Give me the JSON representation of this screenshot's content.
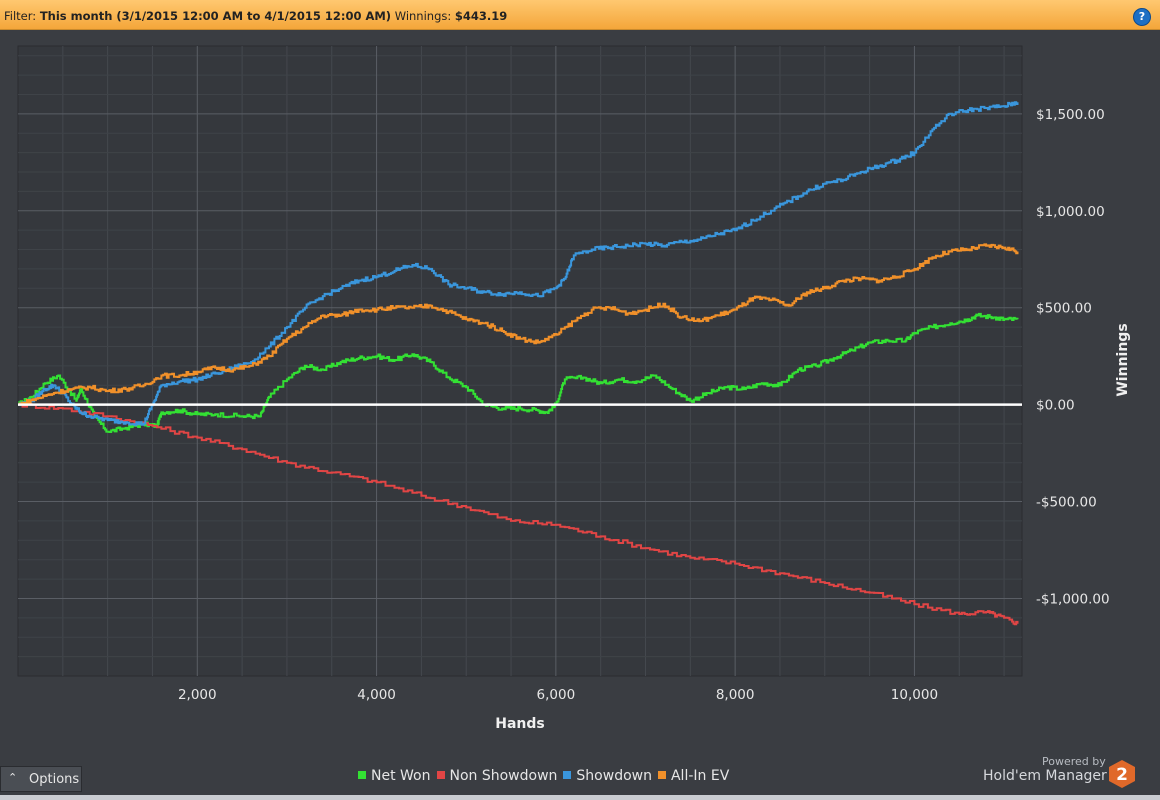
{
  "filter": {
    "label": "Filter:",
    "value": "This month (3/1/2015 12:00 AM to 4/1/2015 12:00 AM)",
    "winnings_label": "Winnings:",
    "winnings_value": "$443.19"
  },
  "help_icon": "question-icon",
  "chart_data": {
    "type": "line",
    "xlabel": "Hands",
    "ylabel": "Winnings",
    "xlim": [
      0,
      11200
    ],
    "ylim": [
      -1400,
      1850
    ],
    "x_ticks": [
      2000,
      4000,
      6000,
      8000,
      10000
    ],
    "x_tick_labels": [
      "2,000",
      "4,000",
      "6,000",
      "8,000",
      "10,000"
    ],
    "y_ticks": [
      1500,
      1000,
      500,
      0,
      -500,
      -1000
    ],
    "y_tick_labels": [
      "$1,500.00",
      "$1,000.00",
      "$500.00",
      "$0.00",
      "-$500.00",
      "-$1,000.00"
    ],
    "grid": true,
    "legend_position": "bottom",
    "series": [
      {
        "name": "Net Won",
        "color": "#33e033",
        "x": [
          0,
          150,
          300,
          450,
          650,
          700,
          850,
          1000,
          1200,
          1400,
          1550,
          1600,
          1800,
          2000,
          2200,
          2500,
          2700,
          2800,
          3000,
          3200,
          3400,
          3600,
          3800,
          4000,
          4200,
          4400,
          4600,
          4800,
          5000,
          5200,
          5400,
          5600,
          5800,
          5900,
          6000,
          6100,
          6300,
          6500,
          6700,
          6900,
          7100,
          7300,
          7500,
          7700,
          7900,
          8100,
          8300,
          8500,
          8700,
          8900,
          9100,
          9300,
          9500,
          9700,
          9900,
          10000,
          10200,
          10400,
          10600,
          10700,
          10900,
          11000,
          11150
        ],
        "y": [
          0,
          40,
          110,
          150,
          20,
          80,
          -60,
          -140,
          -120,
          -100,
          -110,
          -40,
          -30,
          -50,
          -50,
          -60,
          -60,
          40,
          130,
          200,
          180,
          220,
          240,
          250,
          230,
          260,
          220,
          140,
          90,
          0,
          -20,
          -20,
          -30,
          -40,
          0,
          130,
          140,
          110,
          130,
          120,
          150,
          80,
          20,
          60,
          90,
          80,
          110,
          100,
          180,
          200,
          240,
          280,
          320,
          330,
          330,
          370,
          400,
          420,
          440,
          460,
          450,
          440,
          440
        ]
      },
      {
        "name": "Non Showdown",
        "color": "#e14545",
        "x": [
          0,
          500,
          1000,
          1500,
          2000,
          2500,
          3000,
          3500,
          4000,
          4500,
          5000,
          5500,
          6000,
          6500,
          7000,
          7500,
          8000,
          8500,
          9000,
          9500,
          10000,
          10500,
          10800,
          11000,
          11150
        ],
        "y": [
          0,
          -20,
          -60,
          -110,
          -170,
          -230,
          -300,
          -350,
          -400,
          -470,
          -530,
          -600,
          -620,
          -680,
          -740,
          -790,
          -820,
          -870,
          -920,
          -970,
          -1030,
          -1080,
          -1070,
          -1100,
          -1130
        ]
      },
      {
        "name": "Showdown",
        "color": "#3a96dc",
        "x": [
          0,
          150,
          300,
          400,
          500,
          600,
          700,
          800,
          1000,
          1200,
          1400,
          1500,
          1600,
          1800,
          2000,
          2200,
          2400,
          2600,
          2800,
          3000,
          3200,
          3400,
          3600,
          3800,
          4000,
          4200,
          4400,
          4600,
          4800,
          5000,
          5200,
          5400,
          5600,
          5800,
          6000,
          6100,
          6200,
          6400,
          6600,
          6800,
          7000,
          7200,
          7400,
          7600,
          7800,
          8000,
          8200,
          8400,
          8600,
          8800,
          9000,
          9200,
          9400,
          9600,
          9800,
          10000,
          10200,
          10400,
          10600,
          10800,
          11000,
          11150
        ],
        "y": [
          0,
          20,
          80,
          100,
          60,
          0,
          -40,
          -60,
          -80,
          -90,
          -100,
          0,
          100,
          120,
          130,
          160,
          190,
          220,
          300,
          400,
          500,
          560,
          600,
          640,
          660,
          690,
          720,
          700,
          620,
          600,
          580,
          570,
          580,
          560,
          600,
          650,
          770,
          800,
          810,
          820,
          830,
          820,
          840,
          850,
          880,
          900,
          950,
          1000,
          1050,
          1100,
          1140,
          1160,
          1200,
          1230,
          1260,
          1300,
          1420,
          1500,
          1520,
          1530,
          1540,
          1560
        ]
      },
      {
        "name": "All-In EV",
        "color": "#f0902a",
        "x": [
          0,
          200,
          400,
          600,
          800,
          1000,
          1200,
          1400,
          1600,
          1800,
          2000,
          2200,
          2400,
          2600,
          2800,
          3000,
          3200,
          3400,
          3600,
          3800,
          4000,
          4200,
          4400,
          4600,
          4800,
          5000,
          5200,
          5400,
          5600,
          5800,
          6000,
          6200,
          6400,
          6600,
          6800,
          7000,
          7200,
          7400,
          7600,
          7800,
          8000,
          8200,
          8400,
          8600,
          8800,
          9000,
          9200,
          9400,
          9600,
          9800,
          10000,
          10200,
          10400,
          10600,
          10800,
          11000,
          11150
        ],
        "y": [
          0,
          30,
          60,
          80,
          90,
          70,
          80,
          100,
          150,
          150,
          170,
          190,
          180,
          200,
          250,
          340,
          400,
          460,
          460,
          490,
          490,
          500,
          500,
          510,
          480,
          440,
          420,
          380,
          340,
          320,
          360,
          430,
          490,
          500,
          470,
          490,
          520,
          450,
          430,
          460,
          490,
          550,
          540,
          510,
          580,
          600,
          640,
          650,
          640,
          660,
          700,
          760,
          790,
          800,
          820,
          810,
          790
        ]
      }
    ]
  },
  "options_label": "Options",
  "powered_by": "Powered by",
  "brand": "Hold'em Manager",
  "brand_logo": "2"
}
